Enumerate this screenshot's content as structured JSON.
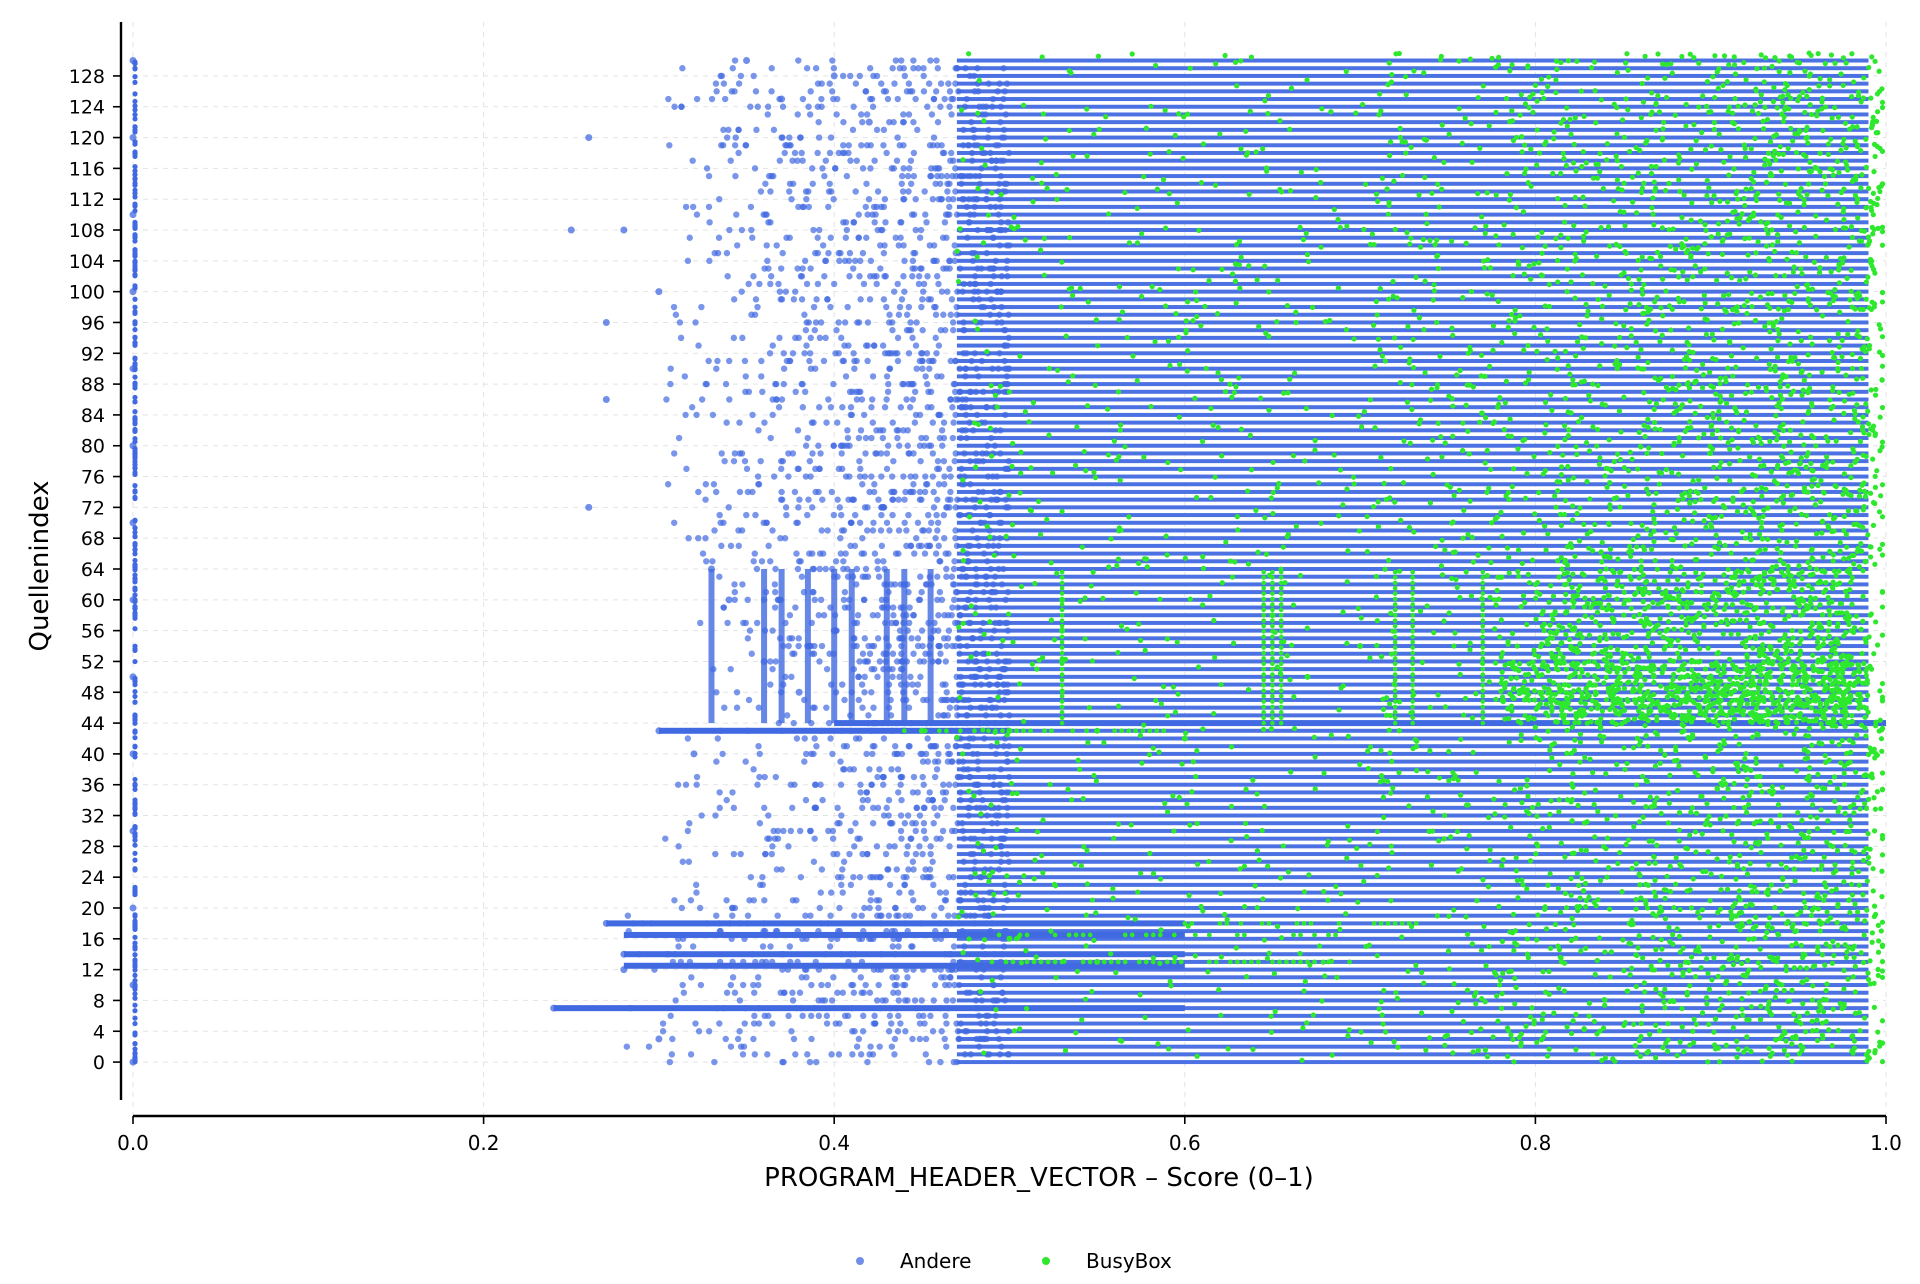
{
  "chart_data": {
    "type": "scatter",
    "title": "",
    "xlabel": "PROGRAM_HEADER_VECTOR – Score (0–1)",
    "ylabel": "Quellenindex",
    "xlim": [
      0.0,
      1.0
    ],
    "ylim": [
      -7,
      135
    ],
    "x_ticks": [
      "0.0",
      "0.2",
      "0.4",
      "0.6",
      "0.8",
      "1.0"
    ],
    "x_tick_values": [
      0.0,
      0.2,
      0.4,
      0.6,
      0.8,
      1.0
    ],
    "y_ticks": [
      0,
      4,
      8,
      12,
      16,
      20,
      24,
      28,
      32,
      36,
      40,
      44,
      48,
      52,
      56,
      60,
      64,
      68,
      72,
      76,
      80,
      84,
      88,
      92,
      96,
      100,
      104,
      108,
      112,
      116,
      120,
      124,
      128
    ],
    "grid": true,
    "legend": {
      "placement": "bottom-center"
    },
    "series": [
      {
        "name": "Andere",
        "color": "#4169E1",
        "summary": "dense band of points for every source index 0–130, x mostly 0.45–1.0, sparse scatter down to ~0.25, and a vertical strip at x=0.0",
        "points": [
          [
            0.0,
            0
          ],
          [
            0.0,
            10
          ],
          [
            0.0,
            20
          ],
          [
            0.0,
            30
          ],
          [
            0.0,
            40
          ],
          [
            0.0,
            50
          ],
          [
            0.0,
            60
          ],
          [
            0.0,
            70
          ],
          [
            0.0,
            80
          ],
          [
            0.0,
            90
          ],
          [
            0.0,
            100
          ],
          [
            0.0,
            110
          ],
          [
            0.0,
            120
          ],
          [
            0.0,
            130
          ],
          [
            0.24,
            7
          ],
          [
            0.27,
            18
          ],
          [
            0.28,
            14
          ],
          [
            0.28,
            12
          ],
          [
            0.3,
            43
          ],
          [
            0.3,
            3
          ],
          [
            0.32,
            40
          ],
          [
            0.25,
            108
          ],
          [
            0.26,
            120
          ],
          [
            0.27,
            96
          ],
          [
            0.27,
            86
          ],
          [
            0.26,
            72
          ],
          [
            0.28,
            108
          ],
          [
            0.3,
            100
          ],
          [
            0.35,
            130
          ],
          [
            0.37,
            125
          ],
          [
            0.4,
            128
          ],
          [
            0.42,
            122
          ],
          [
            0.33,
            64
          ],
          [
            0.34,
            60
          ],
          [
            0.36,
            52
          ],
          [
            0.38,
            48
          ],
          [
            0.4,
            56
          ]
        ]
      },
      {
        "name": "BusyBox",
        "color": "#2EE82E",
        "summary": "points concentrated at x 0.7–1.0 across all indices, with additional scatter 0.45–0.7",
        "points": [
          [
            0.45,
            43
          ],
          [
            0.5,
            43
          ],
          [
            0.55,
            43
          ],
          [
            0.6,
            42
          ],
          [
            0.5,
            16
          ],
          [
            0.55,
            13
          ],
          [
            0.53,
            56
          ],
          [
            0.53,
            52
          ],
          [
            0.53,
            60
          ],
          [
            0.65,
            58
          ],
          [
            0.67,
            50
          ],
          [
            0.7,
            54
          ]
        ]
      }
    ]
  },
  "legend": {
    "items": [
      {
        "label": "Andere",
        "color": "#4169E1"
      },
      {
        "label": "BusyBox",
        "color": "#2EE82E"
      }
    ]
  }
}
